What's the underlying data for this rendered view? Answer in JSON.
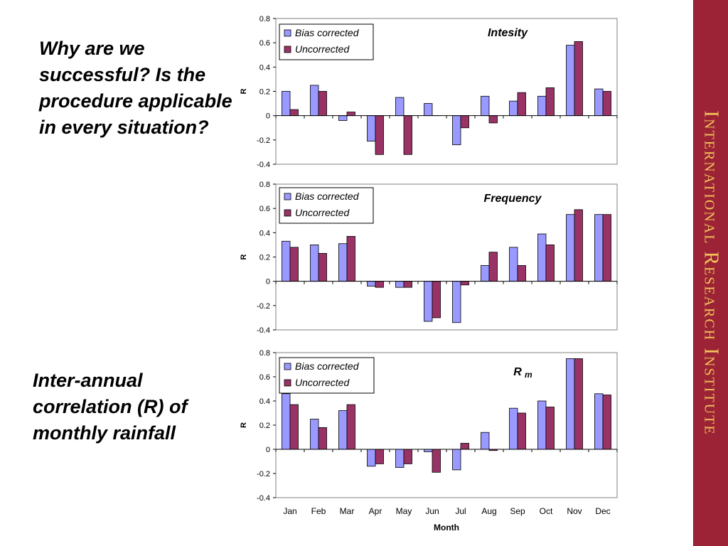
{
  "slide": {
    "question": "Why are we successful? Is the procedure applicable in every situation?",
    "caption": "Inter-annual correlation (R) of monthly rainfall",
    "sidebar_text": "International Research Institute",
    "sidebar_color": "#9b2335",
    "sidebar_text_color": "#f2c15a"
  },
  "chart_data": [
    {
      "type": "bar",
      "title": "Intesity",
      "ylabel": "R",
      "xlabel": "",
      "ylim": [
        -0.4,
        0.8
      ],
      "yticks": [
        "0.8",
        "0.6",
        "0.4",
        "0.2",
        "0",
        "-0.2",
        "-0.4"
      ],
      "legend_position": "top-left",
      "categories": [
        "Jan",
        "Feb",
        "Mar",
        "Apr",
        "May",
        "Jun",
        "Jul",
        "Aug",
        "Sep",
        "Oct",
        "Nov",
        "Dec"
      ],
      "series": [
        {
          "name": "Bias corrected",
          "color": "#9999ff",
          "values": [
            0.2,
            0.25,
            -0.04,
            -0.21,
            0.15,
            0.1,
            -0.24,
            0.16,
            0.12,
            0.16,
            0.58,
            0.22
          ]
        },
        {
          "name": "Uncorrected",
          "color": "#993366",
          "values": [
            0.05,
            0.2,
            0.03,
            -0.32,
            -0.32,
            0.0,
            -0.1,
            -0.06,
            0.19,
            0.23,
            0.61,
            0.2
          ]
        }
      ]
    },
    {
      "type": "bar",
      "title": "Frequency",
      "ylabel": "R",
      "xlabel": "",
      "ylim": [
        -0.4,
        0.8
      ],
      "yticks": [
        "0.8",
        "0.6",
        "0.4",
        "0.2",
        "0",
        "-0.2",
        "-0.4"
      ],
      "legend_position": "top-left",
      "categories": [
        "Jan",
        "Feb",
        "Mar",
        "Apr",
        "May",
        "Jun",
        "Jul",
        "Aug",
        "Sep",
        "Oct",
        "Nov",
        "Dec"
      ],
      "series": [
        {
          "name": "Bias corrected",
          "color": "#9999ff",
          "values": [
            0.33,
            0.3,
            0.31,
            -0.04,
            -0.05,
            -0.33,
            -0.34,
            0.13,
            0.28,
            0.39,
            0.55,
            0.55
          ]
        },
        {
          "name": "Uncorrected",
          "color": "#993366",
          "values": [
            0.28,
            0.23,
            0.37,
            -0.05,
            -0.05,
            -0.3,
            -0.03,
            0.24,
            0.13,
            0.3,
            0.59,
            0.55
          ]
        }
      ]
    },
    {
      "type": "bar",
      "title": "R",
      "title_subscript": "m",
      "ylabel": "R",
      "xlabel": "Month",
      "ylim": [
        -0.4,
        0.8
      ],
      "yticks": [
        "0.8",
        "0.6",
        "0.4",
        "0.2",
        "0",
        "-0.2",
        "-0.4"
      ],
      "legend_position": "top-left",
      "categories": [
        "Jan",
        "Feb",
        "Mar",
        "Apr",
        "May",
        "Jun",
        "Jul",
        "Aug",
        "Sep",
        "Oct",
        "Nov",
        "Dec"
      ],
      "series": [
        {
          "name": "Bias corrected",
          "color": "#9999ff",
          "values": [
            0.46,
            0.25,
            0.32,
            -0.14,
            -0.15,
            -0.02,
            -0.17,
            0.14,
            0.34,
            0.4,
            0.75,
            0.46
          ]
        },
        {
          "name": "Uncorrected",
          "color": "#993366",
          "values": [
            0.37,
            0.18,
            0.37,
            -0.12,
            -0.12,
            -0.19,
            0.05,
            -0.01,
            0.3,
            0.35,
            0.75,
            0.45
          ]
        }
      ]
    }
  ]
}
